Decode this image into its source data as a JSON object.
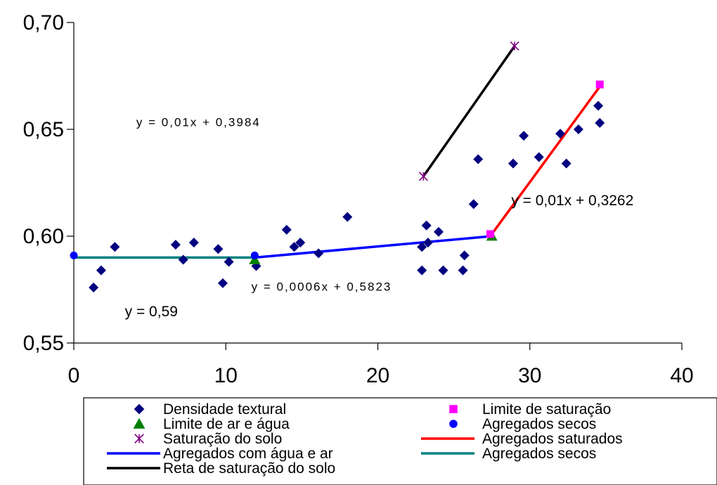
{
  "chart_data": {
    "type": "scatter",
    "x_axis": {
      "min": 0,
      "max": 40,
      "ticks": [
        0,
        10,
        20,
        30,
        40
      ],
      "tick_labels": [
        "0",
        "10",
        "20",
        "30",
        "40"
      ]
    },
    "y_axis": {
      "min": 0.55,
      "max": 0.7,
      "ticks": [
        0.55,
        0.6,
        0.65,
        0.7
      ],
      "tick_labels": [
        "0,55",
        "0,60",
        "0,65",
        "0,70"
      ]
    },
    "grid": false,
    "legend_position": "bottom",
    "series": [
      {
        "name": "Densidade textural",
        "kind": "points",
        "marker": "diamond",
        "color": "#000080",
        "points": [
          [
            1.3,
            0.576
          ],
          [
            1.8,
            0.584
          ],
          [
            2.7,
            0.595
          ],
          [
            6.7,
            0.596
          ],
          [
            7.2,
            0.589
          ],
          [
            7.9,
            0.597
          ],
          [
            9.5,
            0.594
          ],
          [
            9.8,
            0.578
          ],
          [
            10.2,
            0.588
          ],
          [
            12.0,
            0.586
          ],
          [
            14.0,
            0.603
          ],
          [
            14.5,
            0.595
          ],
          [
            14.9,
            0.597
          ],
          [
            16.1,
            0.592
          ],
          [
            18.0,
            0.609
          ],
          [
            22.9,
            0.595
          ],
          [
            23.2,
            0.605
          ],
          [
            23.3,
            0.597
          ],
          [
            22.9,
            0.584
          ],
          [
            24.0,
            0.602
          ],
          [
            24.3,
            0.584
          ],
          [
            25.6,
            0.584
          ],
          [
            25.7,
            0.591
          ],
          [
            26.3,
            0.615
          ],
          [
            26.6,
            0.636
          ],
          [
            28.9,
            0.634
          ],
          [
            29.6,
            0.647
          ],
          [
            30.6,
            0.637
          ],
          [
            32.0,
            0.648
          ],
          [
            32.4,
            0.634
          ],
          [
            33.2,
            0.65
          ],
          [
            34.5,
            0.661
          ],
          [
            34.6,
            0.653
          ]
        ]
      },
      {
        "name": "Limite de ar e água",
        "kind": "points",
        "marker": "triangle",
        "color": "#008000",
        "points": [
          [
            11.9,
            0.589
          ],
          [
            27.5,
            0.6
          ]
        ]
      },
      {
        "name": "Saturação do solo",
        "kind": "points",
        "marker": "star",
        "color": "#800080",
        "points": [
          [
            23.0,
            0.628
          ],
          [
            29.0,
            0.689
          ]
        ]
      },
      {
        "name": "Agregados com água e ar",
        "kind": "line",
        "color": "#0000ff",
        "points": [
          [
            11.9,
            0.59
          ],
          [
            27.5,
            0.6
          ]
        ]
      },
      {
        "name": "Reta de saturação do solo",
        "kind": "line",
        "color": "#000000",
        "points": [
          [
            23.0,
            0.628
          ],
          [
            29.0,
            0.689
          ]
        ]
      },
      {
        "name": "Limite de saturação",
        "kind": "points",
        "marker": "square",
        "color": "#ff00ff",
        "points": [
          [
            27.4,
            0.601
          ],
          [
            34.6,
            0.671
          ]
        ]
      },
      {
        "name": "Agregados secos",
        "kind": "points",
        "marker": "circle",
        "color": "#0000ff",
        "points": [
          [
            0,
            0.591
          ],
          [
            11.9,
            0.591
          ]
        ]
      },
      {
        "name": "Agregados saturados",
        "kind": "line",
        "color": "#ff0000",
        "points": [
          [
            27.5,
            0.601
          ],
          [
            34.6,
            0.67
          ]
        ]
      },
      {
        "name": "Agregados secos",
        "kind": "line",
        "color": "#008080",
        "points": [
          [
            0,
            0.59
          ],
          [
            11.9,
            0.59
          ]
        ]
      }
    ],
    "annotations": [
      {
        "text": "y = 0,01x + 0,3984",
        "x": 8.2,
        "y": 0.6515,
        "size": 17,
        "spacing": 2
      },
      {
        "text": "y = 0,01x + 0,3262",
        "x": 32.8,
        "y": 0.6145,
        "size": 21,
        "spacing": 0
      },
      {
        "text": "y = 0,0006x + 0,5823",
        "x": 16.3,
        "y": 0.5745,
        "size": 17,
        "spacing": 2
      },
      {
        "text": "y = 0,59",
        "x": 5.1,
        "y": 0.5625,
        "size": 21,
        "spacing": 0
      }
    ],
    "legend": [
      {
        "label": "Densidade textural",
        "symbol": "diamond",
        "color": "#000080",
        "col": 0,
        "row": 0
      },
      {
        "label": "Limite de saturação",
        "symbol": "square",
        "color": "#ff00ff",
        "col": 1,
        "row": 0
      },
      {
        "label": "Limite de ar e água",
        "symbol": "triangle",
        "color": "#008000",
        "col": 0,
        "row": 1
      },
      {
        "label": "Agregados secos",
        "symbol": "circle",
        "color": "#0000ff",
        "col": 1,
        "row": 1
      },
      {
        "label": "Saturação do solo",
        "symbol": "star",
        "color": "#800080",
        "col": 0,
        "row": 2
      },
      {
        "label": "Agregados saturados",
        "symbol": "line",
        "color": "#ff0000",
        "col": 1,
        "row": 2
      },
      {
        "label": "Agregados com água e ar",
        "symbol": "line",
        "color": "#0000ff",
        "col": 0,
        "row": 3
      },
      {
        "label": "Agregados secos",
        "symbol": "line",
        "color": "#008080",
        "col": 1,
        "row": 3
      },
      {
        "label": "Reta de saturação do solo",
        "symbol": "line",
        "color": "#000000",
        "col": 0,
        "row": 4
      }
    ]
  }
}
